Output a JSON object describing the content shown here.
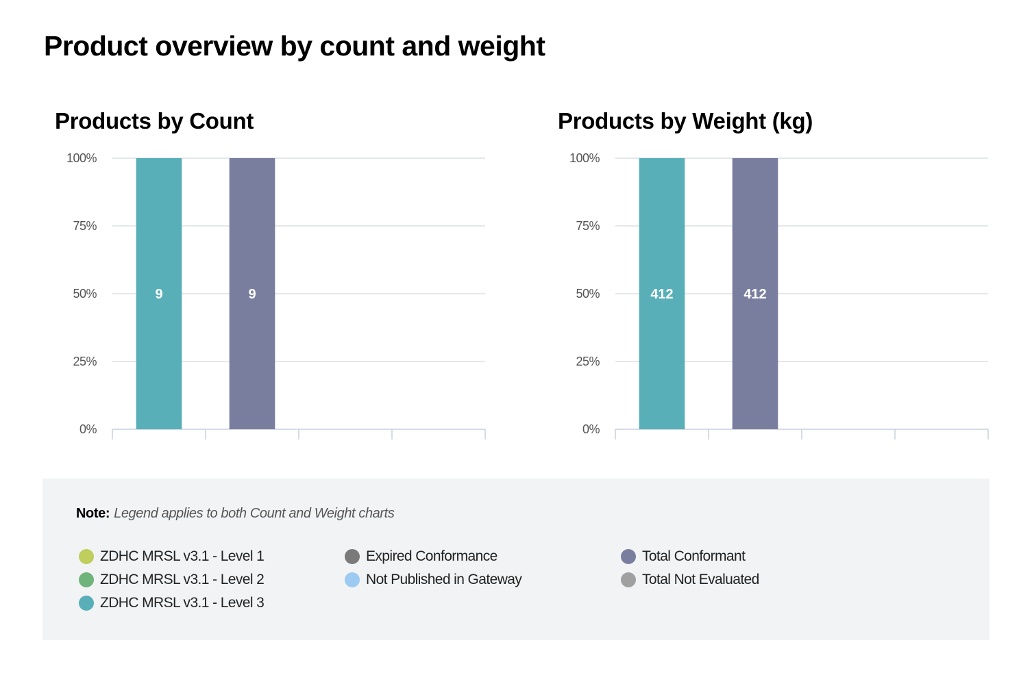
{
  "page": {
    "title": "Product overview by count and weight"
  },
  "charts": {
    "count": {
      "title": "Products by Count"
    },
    "weight": {
      "title": "Products by Weight (kg)"
    }
  },
  "legend": {
    "note_label": "Note:",
    "note_text": "Legend applies to both Count and Weight charts",
    "items": [
      {
        "label": "ZDHC MRSL v3.1 - Level 1",
        "color": "#bfce5c"
      },
      {
        "label": "ZDHC MRSL v3.1 - Level 2",
        "color": "#6fb47a"
      },
      {
        "label": "ZDHC MRSL v3.1 - Level 3",
        "color": "#58afb7"
      },
      {
        "label": "Expired Conformance",
        "color": "#7a7a7a"
      },
      {
        "label": "Not Published in Gateway",
        "color": "#9ccaf2"
      },
      {
        "label": "Total Conformant",
        "color": "#7a7e9e"
      },
      {
        "label": "Total Not Evaluated",
        "color": "#a0a0a0"
      }
    ]
  },
  "chart_data": [
    {
      "type": "bar",
      "stacking": "percent",
      "title": "Products by Count",
      "xlabel": "",
      "ylabel": "",
      "y_ticks": [
        "0%",
        "25%",
        "50%",
        "75%",
        "100%"
      ],
      "ylim": [
        0,
        100
      ],
      "grid": true,
      "legend_placement": "bottom",
      "categories": [
        "",
        "",
        "",
        ""
      ],
      "series": [
        {
          "name": "ZDHC MRSL v3.1 - Level 3",
          "color": "#58afb7",
          "values": [
            9,
            null,
            null,
            null
          ],
          "percent": [
            100,
            null,
            null,
            null
          ]
        },
        {
          "name": "Total Conformant",
          "color": "#7a7e9e",
          "values": [
            null,
            9,
            null,
            null
          ],
          "percent": [
            null,
            100,
            null,
            null
          ]
        }
      ]
    },
    {
      "type": "bar",
      "stacking": "percent",
      "title": "Products by Weight (kg)",
      "xlabel": "",
      "ylabel": "",
      "y_ticks": [
        "0%",
        "25%",
        "50%",
        "75%",
        "100%"
      ],
      "ylim": [
        0,
        100
      ],
      "grid": true,
      "legend_placement": "bottom",
      "categories": [
        "",
        "",
        "",
        ""
      ],
      "series": [
        {
          "name": "ZDHC MRSL v3.1 - Level 3",
          "color": "#58afb7",
          "values": [
            412,
            null,
            null,
            null
          ],
          "percent": [
            100,
            null,
            null,
            null
          ]
        },
        {
          "name": "Total Conformant",
          "color": "#7a7e9e",
          "values": [
            null,
            412,
            null,
            null
          ],
          "percent": [
            null,
            100,
            null,
            null
          ]
        }
      ]
    }
  ]
}
